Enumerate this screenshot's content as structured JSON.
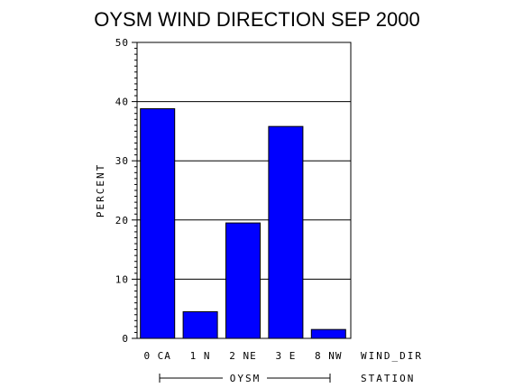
{
  "chart_data": {
    "type": "bar",
    "title": "OYSM WIND DIRECTION SEP 2000",
    "ylabel": "PERCENT",
    "xlabel": "WIND_DIR",
    "group_axis_label": "STATION",
    "group_label": "OYSM",
    "categories": [
      "0 CA",
      "1 N",
      "2 NE",
      "3 E",
      "8 NW"
    ],
    "values": [
      38.8,
      4.5,
      19.5,
      35.8,
      1.5
    ],
    "ylim": [
      0,
      50
    ],
    "yticks": [
      "0",
      "10",
      "20",
      "30",
      "40",
      "50"
    ],
    "grid": true,
    "bar_color": "#0000ff"
  }
}
